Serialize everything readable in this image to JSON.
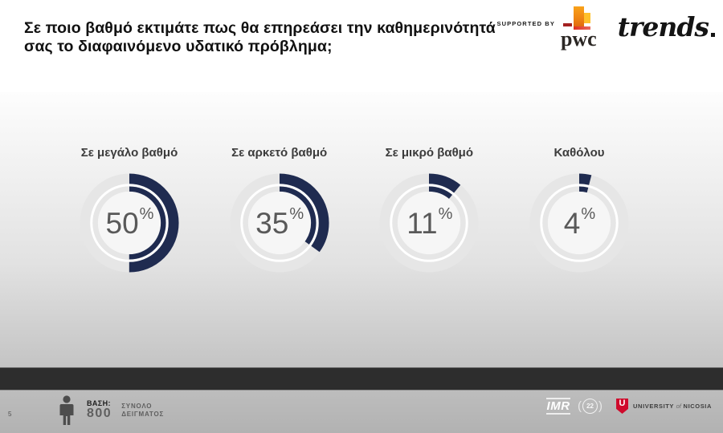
{
  "title": "Σε ποιο βαθμό εκτιμάτε πως θα επηρεάσει την καθημερινότητά σας το διαφαινόμενο υδατικό πρόβλημα;",
  "header": {
    "supported_by": "SUPPORTED BY",
    "pwc_wordmark": "pwc",
    "trends_wordmark": "trends"
  },
  "chart_data": {
    "type": "pie",
    "subtype": "donut-multiples",
    "categories": [
      "Σε μεγάλο βαθμό",
      "Σε αρκετό βαθμό",
      "Σε μικρό βαθμό",
      "Καθόλου"
    ],
    "values": [
      50,
      35,
      11,
      4
    ],
    "unit": "%",
    "title": "Σε ποιο βαθμό εκτιμάτε πως θα επηρεάσει την καθημερινότητά σας το διαφαινόμενο υδατικό πρόβλημα;",
    "legend_position": "above-each-donut",
    "colors": {
      "fill": "#1f2b50",
      "track": "#e6e6e6",
      "separator": "#ffffff",
      "hole": "#f6f6f6",
      "value_text": "#595959",
      "label_text": "#3c3c3c"
    }
  },
  "footer": {
    "page_number": "5",
    "base_label": "ΒΑΣΗ:",
    "base_value": "800",
    "sample_line1": "ΣΥΝΟΛΟ",
    "sample_line2": "ΔΕΙΓΜΑΤΟΣ",
    "imr_wordmark": "IMR",
    "badge_number": "22",
    "laurel_left": "(",
    "laurel_right": ")",
    "university_line": {
      "word1": "UNIVERSITY",
      "word2": "of",
      "word3": "NICOSIA"
    },
    "shield_letter": "U"
  }
}
